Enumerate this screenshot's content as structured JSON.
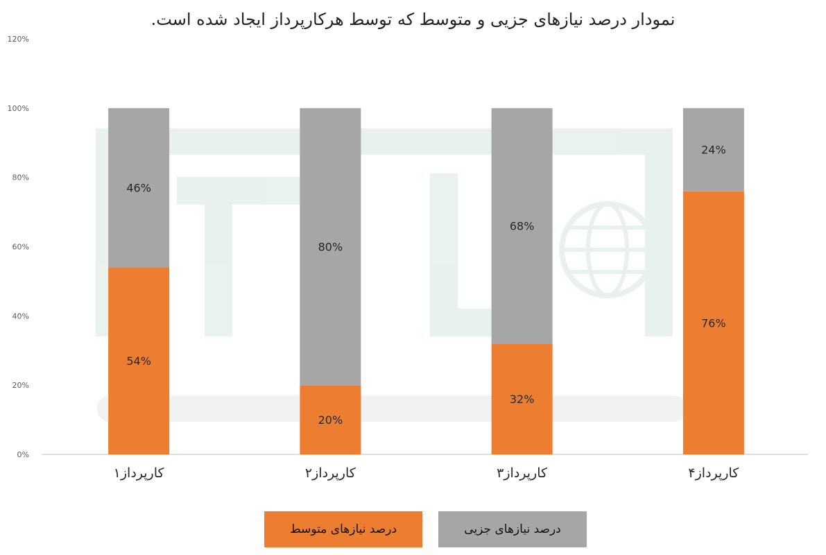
{
  "chart_data": {
    "type": "bar",
    "stacked": true,
    "title": "نمودار درصد نیازهای جزیی و متوسط که توسط هرکارپرداز ایجاد شده است.",
    "categories": [
      "کارپرداز۱",
      "کارپرداز۲",
      "کارپرداز۳",
      "کارپرداز۴"
    ],
    "series": [
      {
        "name": "درصد نیازهای متوسط",
        "values": [
          54,
          20,
          32,
          76
        ],
        "labels": [
          "54%",
          "20%",
          "32%",
          "76%"
        ],
        "color": "#ED7D31"
      },
      {
        "name": "درصد نیازهای جزیی",
        "values": [
          46,
          80,
          68,
          24
        ],
        "labels": [
          "46%",
          "80%",
          "68%",
          "24%"
        ],
        "color": "#A6A6A6"
      }
    ],
    "y_ticks": [
      "0%",
      "20%",
      "40%",
      "60%",
      "80%",
      "100%",
      "120%"
    ],
    "ylim": [
      0,
      120
    ],
    "grid": false,
    "legend_position": "bottom"
  }
}
